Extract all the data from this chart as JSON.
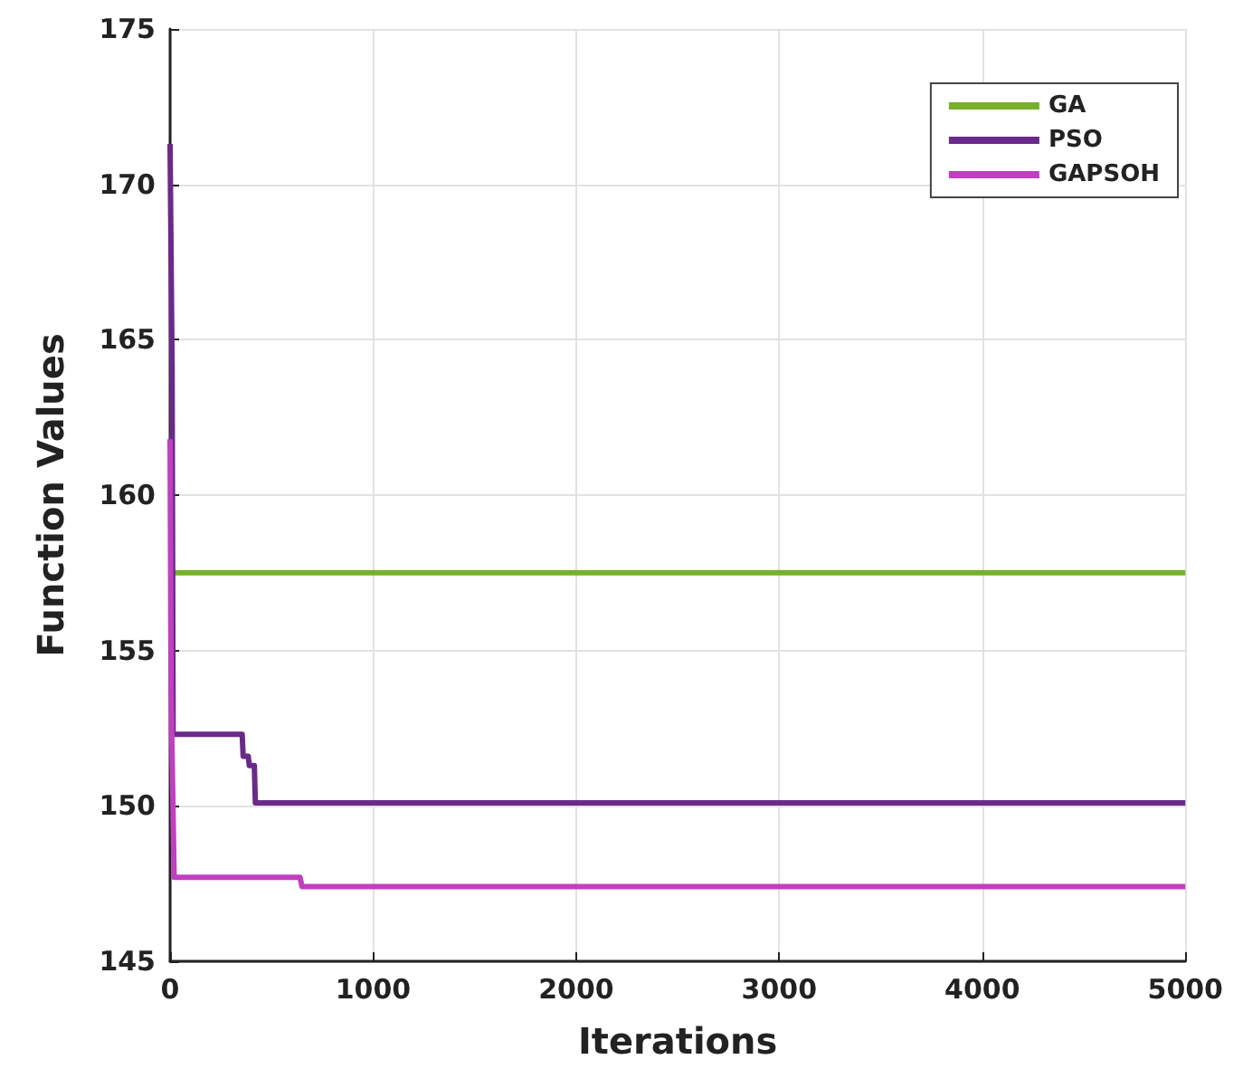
{
  "chart_data": {
    "type": "line",
    "xlabel": "Iterations",
    "ylabel": "Function Values",
    "xlim": [
      0,
      5000
    ],
    "ylim": [
      145,
      175
    ],
    "xticks": [
      0,
      1000,
      2000,
      3000,
      4000,
      5000
    ],
    "yticks": [
      145,
      150,
      155,
      160,
      165,
      170,
      175
    ],
    "grid": true,
    "legend": "top right",
    "marker": "none",
    "line_style": "solid",
    "series": [
      {
        "name": "GA",
        "color": "#77b02a",
        "x": [
          0,
          5000
        ],
        "values": [
          157.5,
          157.5
        ]
      },
      {
        "name": "PSO",
        "color": "#6a2a8a",
        "x": [
          0,
          10,
          15,
          355,
          360,
          385,
          390,
          415,
          420,
          5000
        ],
        "values": [
          171.3,
          164,
          152.3,
          152.3,
          151.6,
          151.6,
          151.3,
          151.3,
          150.1,
          150.1
        ]
      },
      {
        "name": "GAPSOH",
        "color": "#c040c0",
        "x": [
          0,
          5,
          20,
          640,
          650,
          5000
        ],
        "values": [
          161.8,
          153.7,
          147.7,
          147.7,
          147.4,
          147.4
        ]
      }
    ]
  }
}
